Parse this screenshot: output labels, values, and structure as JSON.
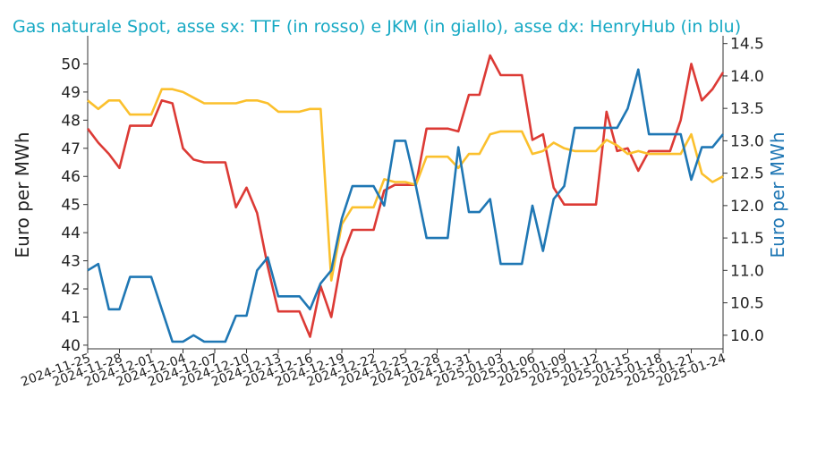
{
  "chart_data": {
    "type": "line",
    "title": "Gas naturale Spot, asse sx: TTF (in rosso) e JKM (in giallo), asse dx: HenryHub (in blu)",
    "ylabel": "Euro per MWh",
    "y2label": "Euro per MWh",
    "x": [
      "2024-11-25",
      "2024-11-26",
      "2024-11-27",
      "2024-11-28",
      "2024-11-29",
      "2024-11-30",
      "2024-12-01",
      "2024-12-02",
      "2024-12-03",
      "2024-12-04",
      "2024-12-05",
      "2024-12-06",
      "2024-12-07",
      "2024-12-08",
      "2024-12-09",
      "2024-12-10",
      "2024-12-11",
      "2024-12-12",
      "2024-12-13",
      "2024-12-14",
      "2024-12-15",
      "2024-12-16",
      "2024-12-17",
      "2024-12-18",
      "2024-12-19",
      "2024-12-20",
      "2024-12-21",
      "2024-12-22",
      "2024-12-23",
      "2024-12-24",
      "2024-12-25",
      "2024-12-26",
      "2024-12-27",
      "2024-12-28",
      "2024-12-29",
      "2024-12-30",
      "2024-12-31",
      "2025-01-01",
      "2025-01-02",
      "2025-01-03",
      "2025-01-04",
      "2025-01-05",
      "2025-01-06",
      "2025-01-07",
      "2025-01-08",
      "2025-01-09",
      "2025-01-10",
      "2025-01-11",
      "2025-01-12",
      "2025-01-13",
      "2025-01-14",
      "2025-01-15",
      "2025-01-16",
      "2025-01-17",
      "2025-01-18",
      "2025-01-19",
      "2025-01-20",
      "2025-01-21",
      "2025-01-22",
      "2025-01-23",
      "2025-01-24"
    ],
    "xlim": [
      "2024-11-25",
      "2025-01-24"
    ],
    "xticks": [
      "2024-11-25",
      "2024-11-28",
      "2024-12-01",
      "2024-12-04",
      "2024-12-07",
      "2024-12-10",
      "2024-12-13",
      "2024-12-16",
      "2024-12-19",
      "2024-12-22",
      "2024-12-25",
      "2024-12-28",
      "2024-12-31",
      "2025-01-03",
      "2025-01-06",
      "2025-01-09",
      "2025-01-12",
      "2025-01-15",
      "2025-01-18",
      "2025-01-21",
      "2025-01-24"
    ],
    "ylim": [
      39.87,
      51.0
    ],
    "yticks": [
      40,
      41,
      42,
      43,
      44,
      45,
      46,
      47,
      48,
      49,
      50
    ],
    "y2lim": [
      9.79,
      14.62
    ],
    "y2ticks": [
      {
        "value": 10,
        "label": "10.0"
      },
      10.5,
      {
        "value": 11,
        "label": "11.0"
      },
      11.5,
      {
        "value": 12,
        "label": "12.0"
      },
      12.5,
      {
        "value": 13,
        "label": "13.0"
      },
      13.5,
      {
        "value": 14,
        "label": "14.0"
      },
      14.5
    ],
    "series": [
      {
        "name": "TTF",
        "color": "#dc3a35",
        "values": [
          47.7,
          47.2,
          46.8,
          46.3,
          47.8,
          47.8,
          47.8,
          48.7,
          48.6,
          47.0,
          46.6,
          46.5,
          46.5,
          46.5,
          44.9,
          45.6,
          44.7,
          42.8,
          41.2,
          41.2,
          41.2,
          40.3,
          42.1,
          41.0,
          43.1,
          44.1,
          44.1,
          44.1,
          45.5,
          45.7,
          45.7,
          45.7,
          47.7,
          47.7,
          47.7,
          47.6,
          48.9,
          48.9,
          50.3,
          49.6,
          49.6,
          49.6,
          47.3,
          47.5,
          45.6,
          45.0,
          45.0,
          45.0,
          45.0,
          48.3,
          46.9,
          47.0,
          46.2,
          46.9,
          46.9,
          46.9,
          48.0,
          50.0,
          48.7,
          49.1,
          49.7
        ]
      },
      {
        "name": "JKM",
        "color": "#fbc02d",
        "values": [
          48.7,
          48.4,
          48.7,
          48.7,
          48.2,
          48.2,
          48.2,
          49.1,
          49.1,
          49.0,
          48.8,
          48.6,
          48.6,
          48.6,
          48.6,
          48.7,
          48.7,
          48.6,
          48.3,
          48.3,
          48.3,
          48.4,
          48.4,
          42.3,
          44.3,
          44.9,
          44.9,
          44.9,
          45.9,
          45.8,
          45.8,
          45.7,
          46.7,
          46.7,
          46.7,
          46.3,
          46.8,
          46.8,
          47.5,
          47.6,
          47.6,
          47.6,
          46.8,
          46.9,
          47.2,
          47.0,
          46.9,
          46.9,
          46.9,
          47.3,
          47.1,
          46.8,
          46.9,
          46.8,
          46.8,
          46.8,
          46.8,
          47.5,
          46.1,
          45.8,
          46.0
        ]
      },
      {
        "name": "HenryHub",
        "color": "#1f77b4",
        "axis": "y2",
        "values": [
          11.0,
          11.1,
          10.4,
          10.4,
          10.9,
          10.9,
          10.9,
          10.4,
          9.9,
          9.9,
          10.0,
          9.9,
          9.9,
          9.9,
          10.3,
          10.3,
          11.0,
          11.2,
          10.6,
          10.6,
          10.6,
          10.4,
          10.8,
          11.0,
          11.8,
          12.3,
          12.3,
          12.3,
          12.0,
          13.0,
          13.0,
          12.3,
          11.5,
          11.5,
          11.5,
          12.9,
          11.9,
          11.9,
          12.1,
          11.1,
          11.1,
          11.1,
          12.0,
          11.3,
          12.1,
          12.3,
          13.2,
          13.2,
          13.2,
          13.2,
          13.2,
          13.5,
          14.1,
          13.1,
          13.1,
          13.1,
          13.1,
          12.4,
          12.9,
          12.9,
          13.1
        ]
      }
    ]
  }
}
